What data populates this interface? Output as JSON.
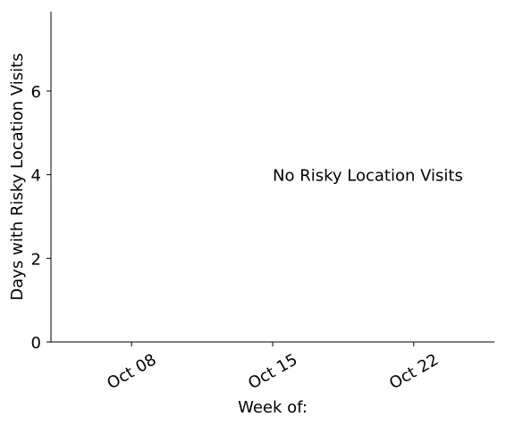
{
  "chart_data": {
    "type": "bar",
    "title": "",
    "xlabel": "Week of:",
    "ylabel": "Days with Risky Location Visits",
    "x_ticks": [
      "Oct 08",
      "Oct 15",
      "Oct 22"
    ],
    "x_dates": [
      "2018-10-08",
      "2018-10-15",
      "2018-10-22"
    ],
    "xlim": [
      "2018-10-04",
      "2018-10-26"
    ],
    "y_ticks": [
      0,
      2,
      4,
      6
    ],
    "ylim": [
      0,
      7.9
    ],
    "series": [],
    "annotation": {
      "text": "No Risky Location Visits",
      "x": "2018-10-15",
      "y": 4
    },
    "grid": false,
    "legend": "none"
  }
}
